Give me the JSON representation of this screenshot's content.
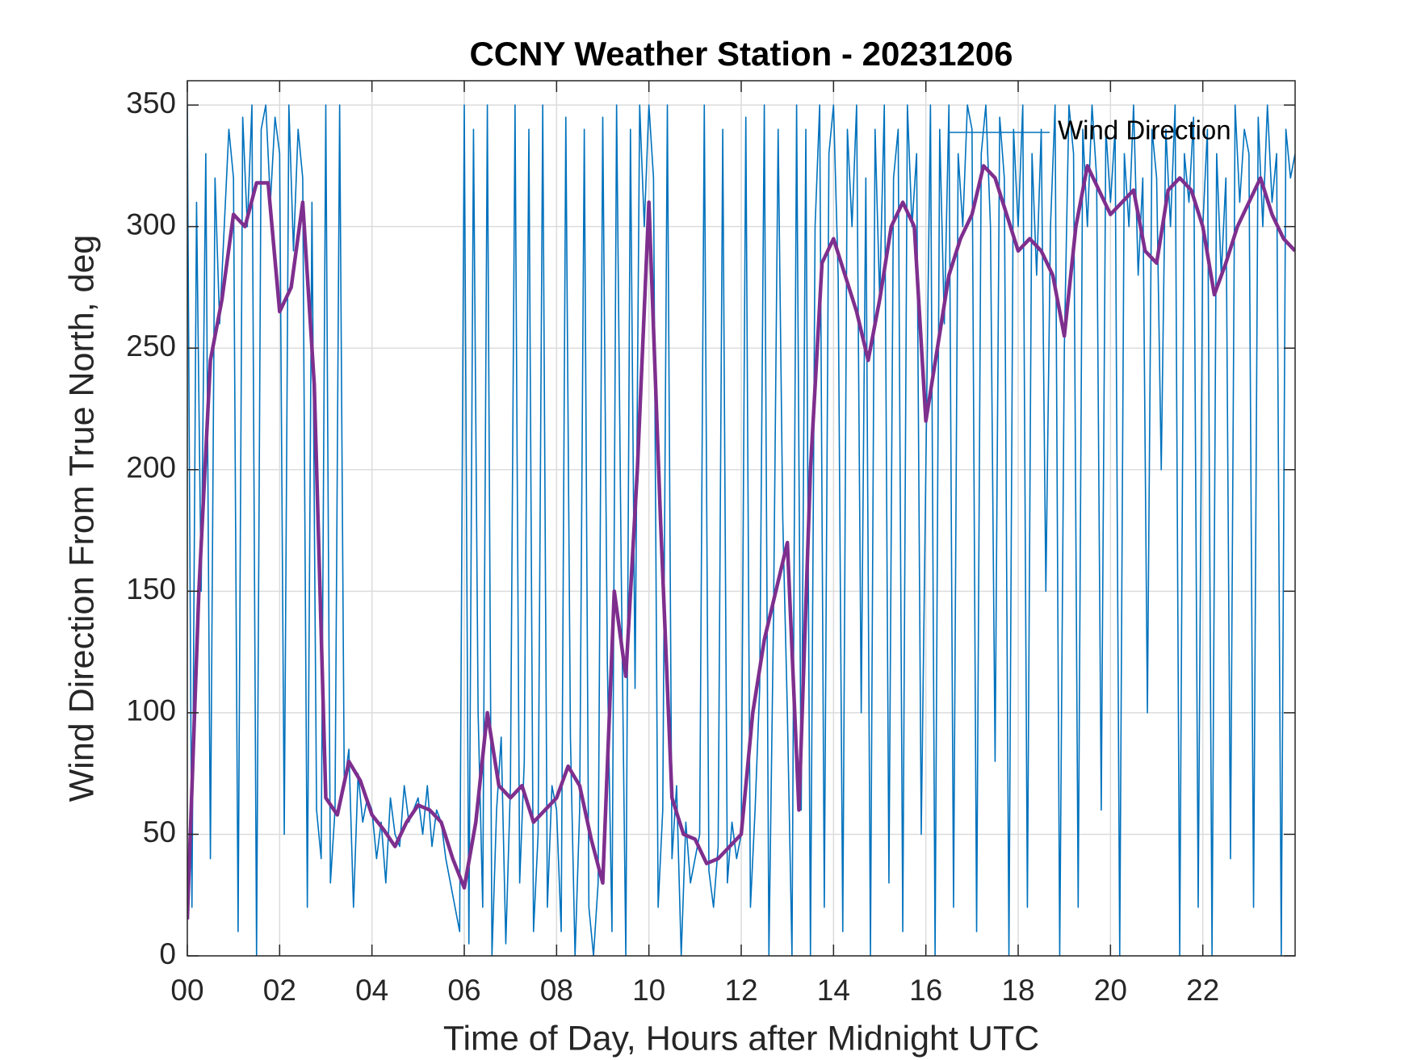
{
  "chart_data": {
    "type": "line",
    "title": "CCNY Weather Station - 20231206",
    "xlabel": "Time of Day, Hours after Midnight UTC",
    "ylabel": "Wind Direction From True North, deg",
    "xlim": [
      0,
      24
    ],
    "ylim": [
      0,
      360
    ],
    "xticks": [
      {
        "value": 0,
        "label": "00"
      },
      {
        "value": 2,
        "label": "02"
      },
      {
        "value": 4,
        "label": "04"
      },
      {
        "value": 6,
        "label": "06"
      },
      {
        "value": 8,
        "label": "08"
      },
      {
        "value": 10,
        "label": "10"
      },
      {
        "value": 12,
        "label": "12"
      },
      {
        "value": 14,
        "label": "14"
      },
      {
        "value": 16,
        "label": "16"
      },
      {
        "value": 18,
        "label": "18"
      },
      {
        "value": 20,
        "label": "20"
      },
      {
        "value": 22,
        "label": "22"
      }
    ],
    "yticks": [
      0,
      50,
      100,
      150,
      200,
      250,
      300,
      350
    ],
    "grid": true,
    "legend": "northeast",
    "series": [
      {
        "name": "Wind Direction",
        "color": "#0072BD",
        "x": [
          0,
          0.1,
          0.2,
          0.3,
          0.4,
          0.5,
          0.6,
          0.7,
          0.8,
          0.9,
          1,
          1.1,
          1.2,
          1.3,
          1.4,
          1.5,
          1.6,
          1.7,
          1.8,
          1.9,
          2,
          2.1,
          2.2,
          2.3,
          2.4,
          2.5,
          2.6,
          2.7,
          2.8,
          2.9,
          3,
          3.1,
          3.2,
          3.3,
          3.4,
          3.5,
          3.6,
          3.7,
          3.8,
          3.9,
          4,
          4.1,
          4.2,
          4.3,
          4.4,
          4.5,
          4.6,
          4.7,
          4.8,
          4.9,
          5,
          5.1,
          5.2,
          5.3,
          5.4,
          5.5,
          5.6,
          5.7,
          5.8,
          5.9,
          6,
          6.1,
          6.2,
          6.3,
          6.4,
          6.5,
          6.6,
          6.7,
          6.8,
          6.9,
          7,
          7.1,
          7.2,
          7.3,
          7.4,
          7.5,
          7.6,
          7.7,
          7.8,
          7.9,
          8,
          8.1,
          8.2,
          8.3,
          8.4,
          8.5,
          8.6,
          8.7,
          8.8,
          8.9,
          9,
          9.1,
          9.2,
          9.3,
          9.4,
          9.5,
          9.6,
          9.7,
          9.8,
          9.9,
          10,
          10.1,
          10.2,
          10.3,
          10.4,
          10.5,
          10.6,
          10.7,
          10.8,
          10.9,
          11,
          11.1,
          11.2,
          11.3,
          11.4,
          11.5,
          11.6,
          11.7,
          11.8,
          11.9,
          12,
          12.1,
          12.2,
          12.3,
          12.4,
          12.5,
          12.6,
          12.7,
          12.8,
          12.9,
          13,
          13.1,
          13.2,
          13.3,
          13.4,
          13.5,
          13.6,
          13.7,
          13.8,
          13.9,
          14,
          14.1,
          14.2,
          14.3,
          14.4,
          14.5,
          14.6,
          14.7,
          14.8,
          14.9,
          15,
          15.1,
          15.2,
          15.3,
          15.4,
          15.5,
          15.6,
          15.7,
          15.8,
          15.9,
          16,
          16.1,
          16.2,
          16.3,
          16.4,
          16.5,
          16.6,
          16.7,
          16.8,
          16.9,
          17,
          17.1,
          17.2,
          17.3,
          17.4,
          17.5,
          17.6,
          17.7,
          17.8,
          17.9,
          18,
          18.1,
          18.2,
          18.3,
          18.4,
          18.5,
          18.6,
          18.7,
          18.8,
          18.9,
          19,
          19.1,
          19.2,
          19.3,
          19.4,
          19.5,
          19.6,
          19.7,
          19.8,
          19.9,
          20,
          20.1,
          20.2,
          20.3,
          20.4,
          20.5,
          20.6,
          20.7,
          20.8,
          20.9,
          21,
          21.1,
          21.2,
          21.3,
          21.4,
          21.5,
          21.6,
          21.7,
          21.8,
          21.9,
          22,
          22.1,
          22.2,
          22.3,
          22.4,
          22.5,
          22.6,
          22.7,
          22.8,
          22.9,
          23,
          23.1,
          23.2,
          23.3,
          23.4,
          23.5,
          23.6,
          23.7,
          23.8,
          23.9,
          24
        ],
        "values": [
          350,
          20,
          310,
          150,
          330,
          40,
          320,
          260,
          300,
          340,
          320,
          10,
          345,
          300,
          350,
          0,
          340,
          350,
          310,
          345,
          330,
          50,
          350,
          290,
          340,
          320,
          20,
          310,
          60,
          40,
          350,
          30,
          60,
          350,
          70,
          85,
          20,
          75,
          55,
          65,
          60,
          40,
          55,
          30,
          65,
          50,
          45,
          70,
          55,
          60,
          65,
          50,
          70,
          45,
          60,
          55,
          40,
          30,
          20,
          10,
          350,
          5,
          340,
          100,
          20,
          350,
          0,
          60,
          90,
          5,
          70,
          350,
          30,
          80,
          340,
          10,
          50,
          350,
          20,
          70,
          60,
          10,
          345,
          90,
          0,
          60,
          340,
          20,
          0,
          30,
          345,
          120,
          10,
          350,
          160,
          0,
          340,
          110,
          350,
          300,
          350,
          320,
          20,
          60,
          350,
          40,
          70,
          0,
          55,
          30,
          40,
          50,
          350,
          35,
          20,
          45,
          340,
          30,
          55,
          40,
          50,
          345,
          20,
          60,
          110,
          350,
          0,
          140,
          340,
          180,
          100,
          0,
          350,
          60,
          340,
          0,
          300,
          350,
          20,
          330,
          350,
          280,
          10,
          340,
          300,
          350,
          100,
          320,
          0,
          340,
          270,
          350,
          30,
          320,
          340,
          10,
          350,
          300,
          330,
          50,
          200,
          350,
          0,
          340,
          260,
          350,
          20,
          330,
          300,
          350,
          340,
          10,
          330,
          350,
          300,
          80,
          345,
          320,
          0,
          340,
          300,
          350,
          20,
          330,
          280,
          340,
          150,
          300,
          350,
          0,
          250,
          350,
          330,
          20,
          340,
          300,
          350,
          320,
          60,
          340,
          310,
          340,
          0,
          330,
          300,
          350,
          280,
          320,
          100,
          340,
          320,
          200,
          340,
          300,
          350,
          0,
          330,
          310,
          345,
          20,
          300,
          340,
          0,
          330,
          280,
          320,
          40,
          350,
          310,
          340,
          330,
          20,
          345,
          300,
          350,
          310,
          330,
          0,
          340,
          320,
          330
        ]
      },
      {
        "color": "#7E2F8E",
        "x": [
          0,
          0.25,
          0.5,
          0.75,
          1,
          1.25,
          1.5,
          1.75,
          2,
          2.25,
          2.5,
          2.75,
          3,
          3.25,
          3.5,
          3.75,
          4,
          4.25,
          4.5,
          4.75,
          5,
          5.25,
          5.5,
          5.75,
          6,
          6.25,
          6.5,
          6.75,
          7,
          7.25,
          7.5,
          7.75,
          8,
          8.25,
          8.5,
          8.75,
          9,
          9.25,
          9.5,
          9.75,
          10,
          10.25,
          10.5,
          10.75,
          11,
          11.25,
          11.5,
          11.75,
          12,
          12.25,
          12.5,
          12.75,
          13,
          13.25,
          13.5,
          13.75,
          14,
          14.25,
          14.5,
          14.75,
          15,
          15.25,
          15.5,
          15.75,
          16,
          16.25,
          16.5,
          16.75,
          17,
          17.25,
          17.5,
          17.75,
          18,
          18.25,
          18.5,
          18.75,
          19,
          19.25,
          19.5,
          19.75,
          20,
          20.25,
          20.5,
          20.75,
          21,
          21.25,
          21.5,
          21.75,
          22,
          22.25,
          22.5,
          22.75,
          23,
          23.25,
          23.5,
          23.75,
          24
        ],
        "values": [
          15,
          150,
          245,
          270,
          305,
          300,
          318,
          318,
          265,
          275,
          310,
          235,
          65,
          58,
          80,
          72,
          58,
          52,
          45,
          55,
          62,
          60,
          55,
          40,
          28,
          55,
          100,
          70,
          65,
          70,
          55,
          60,
          65,
          78,
          70,
          48,
          30,
          150,
          115,
          200,
          310,
          180,
          65,
          50,
          48,
          38,
          40,
          45,
          50,
          100,
          130,
          150,
          170,
          60,
          200,
          285,
          295,
          280,
          265,
          245,
          270,
          300,
          310,
          300,
          220,
          250,
          280,
          295,
          305,
          325,
          320,
          305,
          290,
          295,
          290,
          280,
          255,
          300,
          325,
          315,
          305,
          310,
          315,
          290,
          285,
          315,
          320,
          315,
          300,
          272,
          285,
          300,
          310,
          320,
          305,
          295,
          290
        ]
      }
    ]
  }
}
